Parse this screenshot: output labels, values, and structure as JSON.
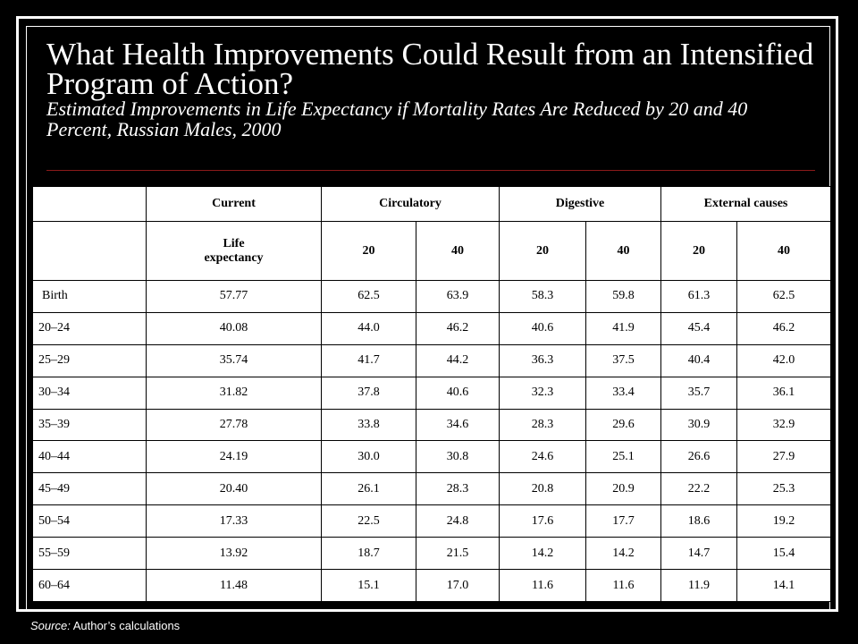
{
  "title": "What Health Improvements Could Result from an Intensified Program of Action?",
  "subtitle": "Estimated Improvements in Life Expectancy if Mortality Rates Are Reduced by 20 and 40 Percent, Russian Males, 2000",
  "table": {
    "group_headers": [
      "",
      "Current",
      "Circulatory",
      "Digestive",
      "External causes"
    ],
    "sub_headers": [
      "",
      "Life expectancy",
      "20",
      "40",
      "20",
      "40",
      "20",
      "40"
    ],
    "rows": [
      [
        "Birth",
        "57.77",
        "62.5",
        "63.9",
        "58.3",
        "59.8",
        "61.3",
        "62.5"
      ],
      [
        "20–24",
        "40.08",
        "44.0",
        "46.2",
        "40.6",
        "41.9",
        "45.4",
        "46.2"
      ],
      [
        "25–29",
        "35.74",
        "41.7",
        "44.2",
        "36.3",
        "37.5",
        "40.4",
        "42.0"
      ],
      [
        "30–34",
        "31.82",
        "37.8",
        "40.6",
        "32.3",
        "33.4",
        "35.7",
        "36.1"
      ],
      [
        "35–39",
        "27.78",
        "33.8",
        "34.6",
        "28.3",
        "29.6",
        "30.9",
        "32.9"
      ],
      [
        "40–44",
        "24.19",
        "30.0",
        "30.8",
        "24.6",
        "25.1",
        "26.6",
        "27.9"
      ],
      [
        "45–49",
        "20.40",
        "26.1",
        "28.3",
        "20.8",
        "20.9",
        "22.2",
        "25.3"
      ],
      [
        "50–54",
        "17.33",
        "22.5",
        "24.8",
        "17.6",
        "17.7",
        "18.6",
        "19.2"
      ],
      [
        "55–59",
        "13.92",
        "18.7",
        "21.5",
        "14.2",
        "14.2",
        "14.7",
        "15.4"
      ],
      [
        "60–64",
        "11.48",
        "15.1",
        "17.0",
        "11.6",
        "11.6",
        "11.9",
        "14.1"
      ]
    ]
  },
  "source": {
    "label": "Source:",
    "text": " Author’s calculations"
  }
}
